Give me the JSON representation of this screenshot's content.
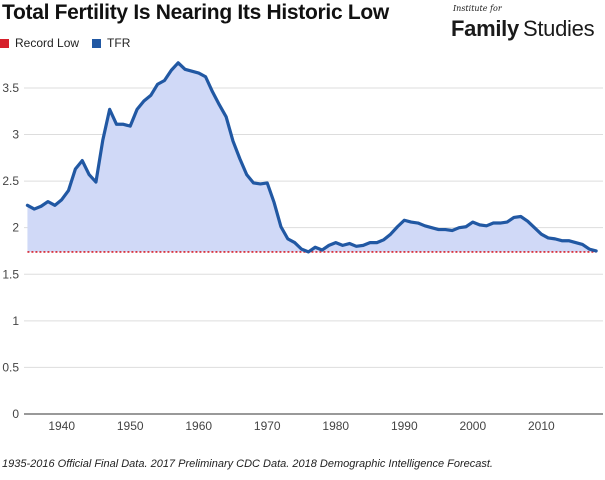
{
  "chart_data": {
    "type": "area",
    "title": "Total Fertility Is Nearing Its Historic Low",
    "xlabel": "",
    "ylabel": "",
    "xlim": [
      1934.5,
      2019
    ],
    "ylim": [
      0,
      3.8
    ],
    "x_ticks": [
      1940,
      1950,
      1960,
      1970,
      1980,
      1990,
      2000,
      2010
    ],
    "x_tick_labels": [
      "1940",
      "1950",
      "1960",
      "1970",
      "1980",
      "1990",
      "2000",
      "2010"
    ],
    "y_ticks": [
      0,
      0.5,
      1,
      1.5,
      2,
      2.5,
      3,
      3.5
    ],
    "y_tick_labels": [
      "0",
      "0.5",
      "1",
      "1.5",
      "2",
      "2.5",
      "3",
      "3.5"
    ],
    "grid": true,
    "legend_position": "top-left",
    "series": [
      {
        "name": "TFR",
        "color": "#2158a3",
        "fill": "#d0d9f7",
        "x": [
          1935,
          1936,
          1937,
          1938,
          1939,
          1940,
          1941,
          1942,
          1943,
          1944,
          1945,
          1946,
          1947,
          1948,
          1949,
          1950,
          1951,
          1952,
          1953,
          1954,
          1955,
          1956,
          1957,
          1958,
          1959,
          1960,
          1961,
          1962,
          1963,
          1964,
          1965,
          1966,
          1967,
          1968,
          1969,
          1970,
          1971,
          1972,
          1973,
          1974,
          1975,
          1976,
          1977,
          1978,
          1979,
          1980,
          1981,
          1982,
          1983,
          1984,
          1985,
          1986,
          1987,
          1988,
          1989,
          1990,
          1991,
          1992,
          1993,
          1994,
          1995,
          1996,
          1997,
          1998,
          1999,
          2000,
          2001,
          2002,
          2003,
          2004,
          2005,
          2006,
          2007,
          2008,
          2009,
          2010,
          2011,
          2012,
          2013,
          2014,
          2015,
          2016,
          2017,
          2018
        ],
        "y": [
          2.24,
          2.2,
          2.23,
          2.28,
          2.24,
          2.3,
          2.4,
          2.63,
          2.72,
          2.57,
          2.49,
          2.94,
          3.27,
          3.11,
          3.11,
          3.09,
          3.27,
          3.36,
          3.42,
          3.54,
          3.58,
          3.69,
          3.77,
          3.7,
          3.68,
          3.66,
          3.62,
          3.46,
          3.32,
          3.19,
          2.93,
          2.74,
          2.57,
          2.48,
          2.47,
          2.48,
          2.27,
          2.01,
          1.88,
          1.84,
          1.77,
          1.74,
          1.79,
          1.76,
          1.81,
          1.84,
          1.81,
          1.83,
          1.8,
          1.81,
          1.84,
          1.84,
          1.87,
          1.93,
          2.01,
          2.08,
          2.06,
          2.05,
          2.02,
          2.0,
          1.98,
          1.98,
          1.97,
          2.0,
          2.01,
          2.06,
          2.03,
          2.02,
          2.05,
          2.05,
          2.06,
          2.11,
          2.12,
          2.07,
          2.0,
          1.93,
          1.89,
          1.88,
          1.86,
          1.86,
          1.84,
          1.82,
          1.77,
          1.75
        ]
      },
      {
        "name": "Record Low",
        "color": "#d6202b",
        "x": [
          1935,
          2018
        ],
        "y": [
          1.74,
          1.74
        ]
      }
    ]
  },
  "legend": [
    {
      "label": "Record Low",
      "color": "#d6202b"
    },
    {
      "label": "TFR",
      "color": "#2158a3"
    }
  ],
  "logo": {
    "small_text": "Institute for",
    "word_bold": "Family",
    "word_regular": "Studies"
  },
  "footnote": "1935-2016 Official Final Data. 2017 Preliminary CDC Data. 2018 Demographic Intelligence Forecast."
}
